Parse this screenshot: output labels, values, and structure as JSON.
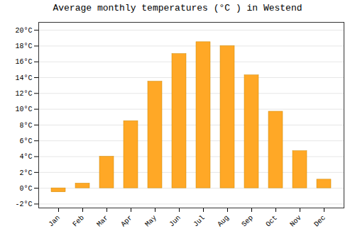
{
  "chart_data": {
    "type": "bar",
    "title": "Average monthly temperatures (°C ) in Westend",
    "categories": [
      "Jan",
      "Feb",
      "Mar",
      "Apr",
      "May",
      "Jun",
      "Jul",
      "Aug",
      "Sep",
      "Oct",
      "Nov",
      "Dec"
    ],
    "values": [
      -0.5,
      0.6,
      4.0,
      8.5,
      13.5,
      17.0,
      18.5,
      18.0,
      14.3,
      9.7,
      4.7,
      1.1
    ],
    "color": "#FFA826",
    "ylim": [
      -2.5,
      21
    ],
    "yticks": [
      {
        "value": -2,
        "label": "-2°C"
      },
      {
        "value": 0,
        "label": "0°C"
      },
      {
        "value": 2,
        "label": "2°C"
      },
      {
        "value": 4,
        "label": "4°C"
      },
      {
        "value": 6,
        "label": "6°C"
      },
      {
        "value": 8,
        "label": "8°C"
      },
      {
        "value": 10,
        "label": "10°C"
      },
      {
        "value": 12,
        "label": "12°C"
      },
      {
        "value": 14,
        "label": "14°C"
      },
      {
        "value": 16,
        "label": "16°C"
      },
      {
        "value": 18,
        "label": "18°C"
      },
      {
        "value": 20,
        "label": "20°C"
      }
    ],
    "grid": true
  }
}
